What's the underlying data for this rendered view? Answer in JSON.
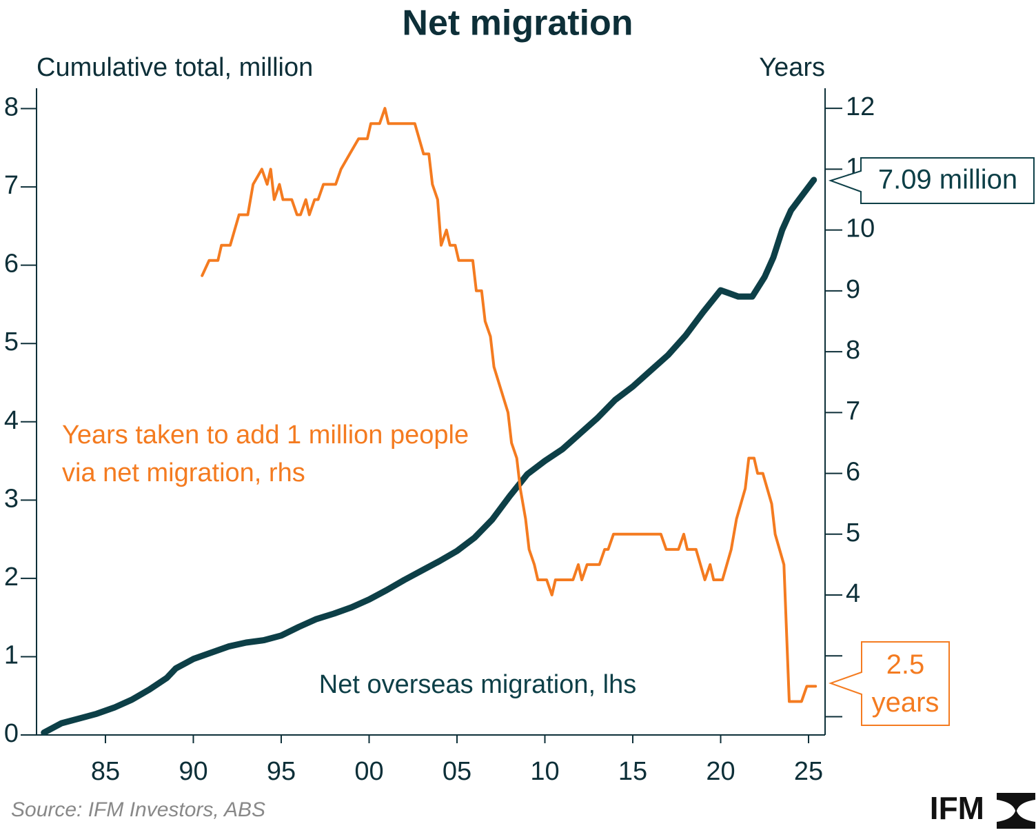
{
  "chart_data": {
    "type": "line",
    "title": "Net migration",
    "y_label": "Cumulative total, million",
    "y2_label": "Years",
    "xlim": [
      1981.08,
      2025.94
    ],
    "xticks": [
      {
        "value": 1985,
        "label": "85"
      },
      {
        "value": 1990,
        "label": "90"
      },
      {
        "value": 1995,
        "label": "95"
      },
      {
        "value": 2000,
        "label": "00"
      },
      {
        "value": 2005,
        "label": "05"
      },
      {
        "value": 2010,
        "label": "10"
      },
      {
        "value": 2015,
        "label": "15"
      },
      {
        "value": 2020,
        "label": "20"
      },
      {
        "value": 2025,
        "label": "25"
      }
    ],
    "ylim": [
      0,
      8.26
    ],
    "yticks": [
      0,
      1,
      2,
      3,
      4,
      5,
      6,
      7,
      8
    ],
    "y2lim": [
      1.7,
      12.33
    ],
    "y2ticks": [
      {
        "value": 2,
        "label": null
      },
      {
        "value": 3,
        "label": null
      },
      4,
      5,
      6,
      7,
      8,
      9,
      10,
      11,
      12
    ],
    "series": [
      {
        "name": "Net overseas migration, lhs",
        "color": "#0d3f47",
        "axis": "y",
        "x": [
          1981.5,
          1982.5,
          1983.5,
          1984.5,
          1985.5,
          1986.5,
          1987.5,
          1988.5,
          1989.0,
          1990.0,
          1991.0,
          1992.0,
          1993.0,
          1994.0,
          1995.0,
          1996.0,
          1997.0,
          1998.0,
          1999.0,
          2000.0,
          2001.0,
          2002.0,
          2003.0,
          2004.0,
          2005.0,
          2006.0,
          2007.0,
          2008.0,
          2009.0,
          2010.0,
          2011.0,
          2012.0,
          2013.0,
          2014.0,
          2015.0,
          2016.0,
          2017.0,
          2018.0,
          2019.0,
          2020.0,
          2020.5,
          2021.0,
          2021.8,
          2022.5,
          2023.0,
          2023.5,
          2024.0,
          2024.5,
          2025.3
        ],
        "values": [
          0.03,
          0.15,
          0.21,
          0.27,
          0.35,
          0.45,
          0.58,
          0.73,
          0.85,
          0.97,
          1.05,
          1.13,
          1.18,
          1.21,
          1.27,
          1.38,
          1.48,
          1.55,
          1.63,
          1.73,
          1.85,
          1.98,
          2.1,
          2.22,
          2.35,
          2.52,
          2.75,
          3.05,
          3.33,
          3.5,
          3.65,
          3.85,
          4.05,
          4.28,
          4.45,
          4.65,
          4.85,
          5.1,
          5.4,
          5.68,
          5.64,
          5.6,
          5.6,
          5.85,
          6.1,
          6.45,
          6.7,
          6.85,
          7.09
        ]
      },
      {
        "name": "Years taken to add 1 million people via net migration, rhs",
        "color": "#f47b20",
        "axis": "y2",
        "x": [
          1990.5,
          1990.9,
          1991.4,
          1991.6,
          1992.1,
          1992.6,
          1993.1,
          1993.4,
          1993.9,
          1994.2,
          1994.4,
          1994.6,
          1994.9,
          1995.1,
          1995.6,
          1995.9,
          1996.1,
          1996.4,
          1996.6,
          1996.9,
          1997.1,
          1997.4,
          1998.1,
          1998.4,
          1998.9,
          1999.4,
          1999.9,
          2000.1,
          2000.6,
          2000.9,
          2001.1,
          2002.6,
          2003.1,
          2003.4,
          2003.6,
          2003.9,
          2004.1,
          2004.4,
          2004.6,
          2004.9,
          2005.1,
          2005.9,
          2006.1,
          2006.4,
          2006.6,
          2006.9,
          2007.1,
          2007.9,
          2008.1,
          2008.4,
          2008.6,
          2008.9,
          2009.1,
          2009.4,
          2009.6,
          2010.1,
          2010.4,
          2010.6,
          2011.6,
          2011.9,
          2012.1,
          2012.4,
          2013.1,
          2013.4,
          2013.6,
          2013.9,
          2016.6,
          2016.9,
          2017.1,
          2017.6,
          2017.9,
          2018.1,
          2018.6,
          2019.1,
          2019.4,
          2019.6,
          2020.1,
          2020.6,
          2020.9,
          2021.4,
          2021.6,
          2021.9,
          2022.1,
          2022.4,
          2022.9,
          2023.1,
          2023.6,
          2023.9,
          2024.6,
          2024.9,
          2025.4
        ],
        "values": [
          9.25,
          9.5,
          9.5,
          9.75,
          9.75,
          10.25,
          10.25,
          10.75,
          11.0,
          10.75,
          11.0,
          10.5,
          10.75,
          10.5,
          10.5,
          10.25,
          10.25,
          10.5,
          10.25,
          10.5,
          10.5,
          10.75,
          10.75,
          11.0,
          11.25,
          11.5,
          11.5,
          11.75,
          11.75,
          12.0,
          11.75,
          11.75,
          11.25,
          11.25,
          10.75,
          10.5,
          9.75,
          10.0,
          9.75,
          9.75,
          9.5,
          9.5,
          9.0,
          9.0,
          8.5,
          8.25,
          7.75,
          7.0,
          6.5,
          6.25,
          5.75,
          5.25,
          4.75,
          4.5,
          4.25,
          4.25,
          4.0,
          4.25,
          4.25,
          4.5,
          4.25,
          4.5,
          4.5,
          4.75,
          4.75,
          5.0,
          5.0,
          4.75,
          4.75,
          4.75,
          5.0,
          4.75,
          4.75,
          4.25,
          4.5,
          4.25,
          4.25,
          4.75,
          5.25,
          5.75,
          6.25,
          6.25,
          6.0,
          6.0,
          5.5,
          5.0,
          4.5,
          2.25,
          2.25,
          2.5,
          2.5
        ]
      }
    ],
    "annotations": [
      {
        "text": "7.09 million"
      },
      {
        "text": "2.5 years"
      }
    ],
    "source": "Source: IFM Investors, ABS",
    "logo": "IFM"
  }
}
